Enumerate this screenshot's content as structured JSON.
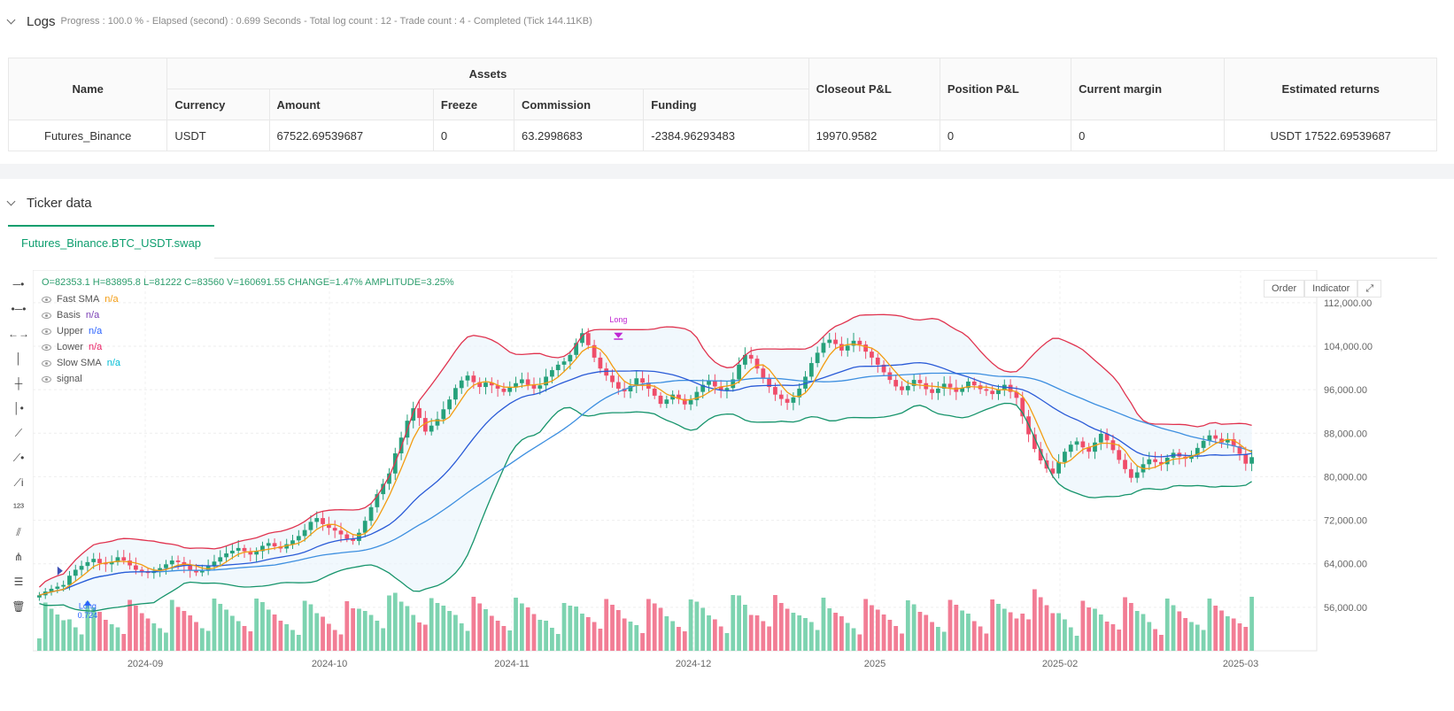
{
  "logs": {
    "title": "Logs",
    "status": "Progress : 100.0 % - Elapsed (second) : 0.699  Seconds - Total log count : 12 - Trade count : 4 - Completed (Tick 144.11KB)",
    "headers": {
      "name": "Name",
      "assets": "Assets",
      "currency": "Currency",
      "amount": "Amount",
      "freeze": "Freeze",
      "commission": "Commission",
      "funding": "Funding",
      "closeout": "Closeout P&L",
      "position": "Position P&L",
      "margin": "Current margin",
      "returns": "Estimated returns"
    },
    "row": {
      "name": "Futures_Binance",
      "currency": "USDT",
      "amount": "67522.69539687",
      "freeze": "0",
      "commission": "63.2998683",
      "funding": "-2384.96293483",
      "closeout": "19970.9582",
      "position": "0",
      "margin": "0",
      "returns": "USDT 17522.69539687"
    }
  },
  "ticker": {
    "title": "Ticker data",
    "tab": "Futures_Binance.BTC_USDT.swap"
  },
  "legend": {
    "ohlc": "O=82353.1 H=83895.8 L=81222 C=83560 V=160691.55 CHANGE=1.47% AMPLITUDE=3.25%",
    "items": [
      {
        "name": "Fast SMA",
        "value": "n/a",
        "color": "#f39c12"
      },
      {
        "name": "Basis",
        "value": "n/a",
        "color": "#7b3fb5"
      },
      {
        "name": "Upper",
        "value": "n/a",
        "color": "#2962ff"
      },
      {
        "name": "Lower",
        "value": "n/a",
        "color": "#e91e63"
      },
      {
        "name": "Slow SMA",
        "value": "n/a",
        "color": "#00bcd4"
      },
      {
        "name": "signal",
        "value": "",
        "color": "#555555"
      }
    ]
  },
  "buttons": {
    "order": "Order",
    "indicator": "Indicator"
  },
  "icons": [
    "horizontal-line-icon",
    "ray-icon",
    "extended-line-icon",
    "vertical-line-icon",
    "cross-line-icon",
    "vertical-ray-icon",
    "trend-line-icon",
    "trend-angle-icon",
    "info-line-icon",
    "price-label-icon",
    "parallel-channel-icon",
    "pitchfork-icon",
    "fib-icon",
    "trash-icon"
  ],
  "chart_data": {
    "type": "candlestick",
    "x_ticks": [
      "2024-09",
      "2024-10",
      "2024-11",
      "2024-12",
      "2025",
      "2025-02",
      "2025-03"
    ],
    "y_ticks": [
      "56,000.00",
      "64,000.00",
      "72,000.00",
      "80,000.00",
      "88,000.00",
      "96,000.00",
      "104,000.00",
      "112,000.00"
    ],
    "ylim": [
      48000,
      118000
    ],
    "closes": [
      58200,
      58900,
      59400,
      59800,
      60100,
      61800,
      62900,
      63600,
      64300,
      64900,
      64100,
      63900,
      64300,
      65200,
      64600,
      63700,
      62900,
      62600,
      62300,
      62700,
      63200,
      63900,
      64600,
      64300,
      63700,
      62900,
      62400,
      62700,
      63600,
      64400,
      65200,
      65900,
      66400,
      66900,
      66300,
      65700,
      66300,
      67300,
      67800,
      67200,
      66800,
      67600,
      68300,
      69100,
      70200,
      71700,
      72400,
      71300,
      70600,
      70100,
      69400,
      68600,
      68200,
      69700,
      71900,
      74400,
      76800,
      78700,
      80600,
      84300,
      87200,
      90300,
      92600,
      90800,
      88300,
      89400,
      90600,
      92400,
      94200,
      96300,
      97700,
      98600,
      97400,
      96500,
      97300,
      96800,
      96200,
      95600,
      96400,
      97200,
      97900,
      96900,
      96200,
      96800,
      98400,
      99600,
      100600,
      101200,
      102400,
      104600,
      106400,
      104200,
      101900,
      99900,
      98600,
      97400,
      96200,
      95700,
      96700,
      98100,
      97300,
      96200,
      94900,
      93400,
      94200,
      95100,
      94300,
      93300,
      94100,
      95600,
      96900,
      97700,
      96600,
      95900,
      96300,
      97900,
      100600,
      102400,
      101700,
      99900,
      98200,
      96500,
      95100,
      94300,
      93600,
      94600,
      96200,
      98400,
      100900,
      102800,
      104600,
      105200,
      104400,
      103200,
      104100,
      105000,
      104300,
      103000,
      101900,
      100600,
      99200,
      97800,
      96600,
      95900,
      96700,
      97800,
      97200,
      96100,
      95400,
      96200,
      97100,
      96400,
      95600,
      96300,
      97500,
      96800,
      96100,
      95800,
      95200,
      96000,
      96900,
      95600,
      94500,
      91100,
      87800,
      85100,
      83000,
      81500,
      80600,
      82700,
      84600,
      85900,
      86500,
      85400,
      84600,
      86300,
      87900,
      86700,
      84900,
      83100,
      81400,
      79800,
      80800,
      82300,
      83200,
      82700,
      82300,
      83500,
      84400,
      83700,
      83300,
      84000,
      85300,
      86600,
      87600,
      87000,
      86300,
      86900,
      85600,
      84200,
      82400,
      83600
    ]
  }
}
